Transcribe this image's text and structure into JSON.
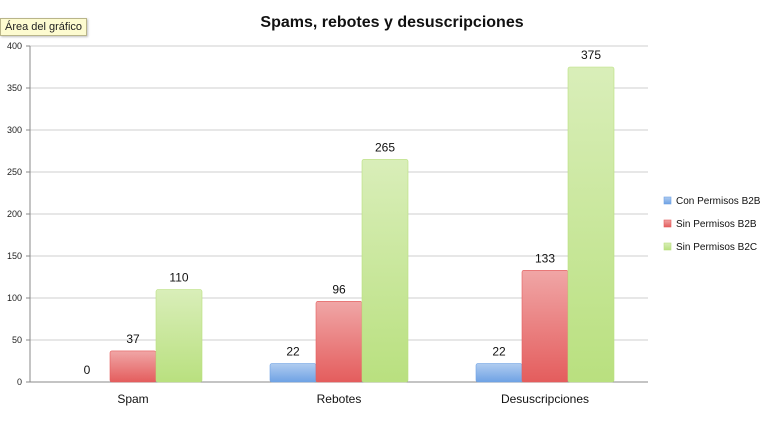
{
  "tooltip": "Área del gráfico",
  "chart_data": {
    "type": "bar",
    "title": "Spams, rebotes y desuscripciones",
    "categories": [
      "Spam",
      "Rebotes",
      "Desuscripciones"
    ],
    "series": [
      {
        "name": "Con Permisos B2B",
        "values": [
          0,
          22,
          22
        ],
        "color": "#6fa2e4"
      },
      {
        "name": "Sin Permisos B2B",
        "values": [
          37,
          96,
          133
        ],
        "color": "#e45d5d"
      },
      {
        "name": "Sin Permisos B2C",
        "values": [
          110,
          265,
          375
        ],
        "color": "#b9e07f"
      }
    ],
    "yticks": [
      0,
      50,
      100,
      150,
      200,
      250,
      300,
      350,
      400
    ],
    "ylim": [
      0,
      400
    ],
    "grid": true,
    "legend": "right",
    "xlabel": "",
    "ylabel": ""
  }
}
